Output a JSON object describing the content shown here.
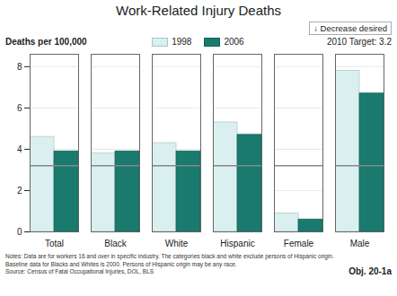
{
  "chart_data": {
    "type": "bar",
    "title": "Work-Related Injury Deaths",
    "ylabel": "Deaths per 100,000",
    "categories": [
      "Total",
      "Black",
      "White",
      "Hispanic",
      "Female",
      "Male"
    ],
    "series": [
      {
        "name": "1998",
        "color": "#daf0f0",
        "values": [
          4.6,
          3.8,
          4.3,
          5.3,
          0.9,
          7.8
        ]
      },
      {
        "name": "2006",
        "color": "#1a7a6e",
        "values": [
          3.9,
          3.9,
          3.9,
          4.7,
          0.6,
          6.7
        ]
      }
    ],
    "ylim": [
      0,
      8.6
    ],
    "yticks": [
      0,
      2,
      4,
      6,
      8
    ],
    "grid": true,
    "legend": "upper center",
    "target_line": {
      "value": 3.2,
      "label": "2010 Target: 3.2",
      "color": "#888888"
    },
    "annotations": [
      "↓ Decrease desired",
      "Obj. 20-1a"
    ],
    "notes": [
      "Notes: Data are for workers 16 and over in specific industry. The categories black and white exclude persons of Hispanic origin.",
      "Baseline data for Blacks and Whites is 2000.  Persons of Hispanic origin may be any race.",
      "Source: Census of Fatal Occupational Injuries, DOL, BLS"
    ]
  }
}
